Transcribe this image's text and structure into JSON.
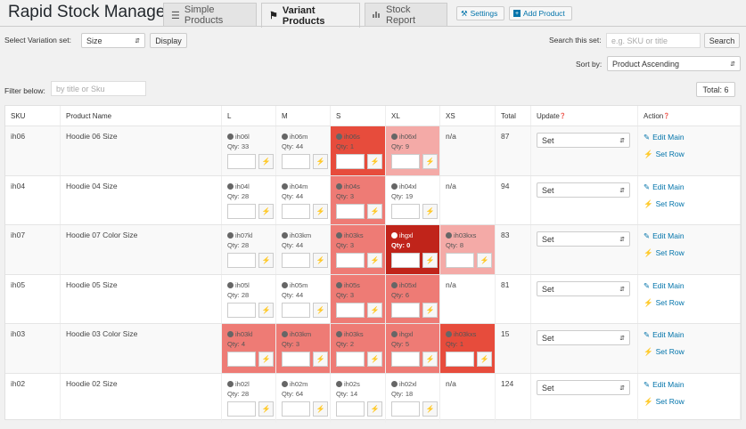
{
  "app": {
    "title": "Rapid Stock Manager"
  },
  "tabs": [
    {
      "label": "Simple Products",
      "icon": "list-icon"
    },
    {
      "label": "Variant Products",
      "icon": "tags-icon"
    },
    {
      "label": "Stock Report",
      "icon": "bar-chart-icon"
    }
  ],
  "header_buttons": {
    "settings": "Settings",
    "add_product": "Add Product"
  },
  "variation": {
    "label": "Select Variation set:",
    "value": "Size",
    "display_button": "Display"
  },
  "search": {
    "label": "Search this set:",
    "placeholder": "e.g. SKU or title",
    "button": "Search"
  },
  "sort": {
    "label": "Sort by:",
    "value": "Product Ascending"
  },
  "filter": {
    "label": "Filter below:",
    "placeholder": "by title or Sku"
  },
  "total": "Total: 6",
  "columns": [
    "SKU",
    "Product Name",
    "L",
    "M",
    "S",
    "XL",
    "XS",
    "Total",
    "Update",
    "Action"
  ],
  "update_default": "Set",
  "action_labels": {
    "edit": "Edit Main",
    "set_row": "Set Row"
  },
  "colors": {
    "red_light": "#f4aaa7",
    "red_mid": "#ee7b75",
    "red_strong": "#e74c3c",
    "red_dark": "#c0241a",
    "link": "#0073aa"
  },
  "rows": [
    {
      "sku": "ih06",
      "name": "Hoodie 06 Size",
      "total": "87",
      "cells": [
        {
          "code": "ih06l",
          "qty": "Qty: 33",
          "level": "none"
        },
        {
          "code": "ih06m",
          "qty": "Qty: 44",
          "level": "none"
        },
        {
          "code": "ih06s",
          "qty": "Qty: 1",
          "level": "strong"
        },
        {
          "code": "ih06xl",
          "qty": "Qty: 9",
          "level": "light"
        },
        {
          "na": "n/a"
        }
      ]
    },
    {
      "sku": "ih04",
      "name": "Hoodie 04 Size",
      "total": "94",
      "cells": [
        {
          "code": "ih04l",
          "qty": "Qty: 28",
          "level": "none"
        },
        {
          "code": "ih04m",
          "qty": "Qty: 44",
          "level": "none"
        },
        {
          "code": "ih04s",
          "qty": "Qty: 3",
          "level": "mid"
        },
        {
          "code": "ih04xl",
          "qty": "Qty: 19",
          "level": "none"
        },
        {
          "na": "n/a"
        }
      ]
    },
    {
      "sku": "ih07",
      "name": "Hoodie 07 Color Size",
      "total": "83",
      "cells": [
        {
          "code": "ih07kl",
          "qty": "Qty: 28",
          "level": "none"
        },
        {
          "code": "ih03km",
          "qty": "Qty: 44",
          "level": "none"
        },
        {
          "code": "ih03ks",
          "qty": "Qty: 3",
          "level": "mid"
        },
        {
          "code": "ihgxl",
          "qty": "Qty: 0",
          "level": "dark"
        },
        {
          "code": "ih03kxs",
          "qty": "Qty: 8",
          "level": "light"
        }
      ]
    },
    {
      "sku": "ih05",
      "name": "Hoodie 05 Size",
      "total": "81",
      "cells": [
        {
          "code": "ih05l",
          "qty": "Qty: 28",
          "level": "none"
        },
        {
          "code": "ih05m",
          "qty": "Qty: 44",
          "level": "none"
        },
        {
          "code": "ih05s",
          "qty": "Qty: 3",
          "level": "mid"
        },
        {
          "code": "ih05xl",
          "qty": "Qty: 6",
          "level": "mid"
        },
        {
          "na": "n/a"
        }
      ]
    },
    {
      "sku": "ih03",
      "name": "Hoodie 03 Color Size",
      "total": "15",
      "cells": [
        {
          "code": "ih03kl",
          "qty": "Qty: 4",
          "level": "mid"
        },
        {
          "code": "ih03km",
          "qty": "Qty: 3",
          "level": "mid"
        },
        {
          "code": "ih03ks",
          "qty": "Qty: 2",
          "level": "mid"
        },
        {
          "code": "ihgxl",
          "qty": "Qty: 5",
          "level": "mid"
        },
        {
          "code": "ih03kxs",
          "qty": "Qty: 1",
          "level": "strong"
        }
      ]
    },
    {
      "sku": "ih02",
      "name": "Hoodie 02 Size",
      "total": "124",
      "cells": [
        {
          "code": "ih02l",
          "qty": "Qty: 28",
          "level": "none"
        },
        {
          "code": "ih02m",
          "qty": "Qty: 64",
          "level": "none"
        },
        {
          "code": "ih02s",
          "qty": "Qty: 14",
          "level": "none"
        },
        {
          "code": "ih02xl",
          "qty": "Qty: 18",
          "level": "none"
        },
        {
          "na": "n/a"
        }
      ]
    }
  ]
}
